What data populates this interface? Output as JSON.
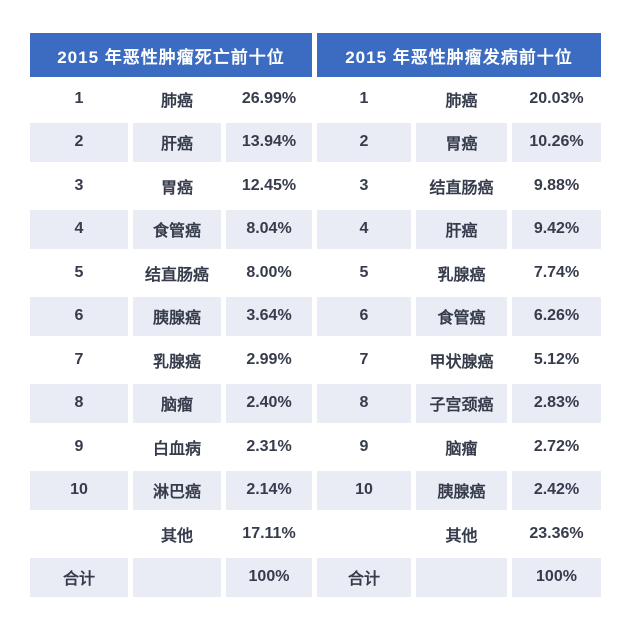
{
  "page": {
    "background": "#ffffff"
  },
  "colors": {
    "header_bg": "#3c6cc2",
    "header_text": "#ffffff",
    "row_shade_bg": "#e9ecf4",
    "cell_text": "#363c4c"
  },
  "tables": [
    {
      "key": "mortality",
      "title": "2015 年恶性肿瘤死亡前十位",
      "rows": [
        {
          "rank": "1",
          "name": "肺癌",
          "value": "26.99%"
        },
        {
          "rank": "2",
          "name": "肝癌",
          "value": "13.94%"
        },
        {
          "rank": "3",
          "name": "胃癌",
          "value": "12.45%"
        },
        {
          "rank": "4",
          "name": "食管癌",
          "value": "8.04%"
        },
        {
          "rank": "5",
          "name": "结直肠癌",
          "value": "8.00%"
        },
        {
          "rank": "6",
          "name": "胰腺癌",
          "value": "3.64%"
        },
        {
          "rank": "7",
          "name": "乳腺癌",
          "value": "2.99%"
        },
        {
          "rank": "8",
          "name": "脑瘤",
          "value": "2.40%"
        },
        {
          "rank": "9",
          "name": "白血病",
          "value": "2.31%"
        },
        {
          "rank": "10",
          "name": "淋巴癌",
          "value": "2.14%"
        },
        {
          "rank": "",
          "name": "其他",
          "value": "17.11%"
        },
        {
          "rank": "合计",
          "name": "",
          "value": "100%"
        }
      ]
    },
    {
      "key": "incidence",
      "title": "2015 年恶性肿瘤发病前十位",
      "rows": [
        {
          "rank": "1",
          "name": "肺癌",
          "value": "20.03%"
        },
        {
          "rank": "2",
          "name": "胃癌",
          "value": "10.26%"
        },
        {
          "rank": "3",
          "name": "结直肠癌",
          "value": "9.88%"
        },
        {
          "rank": "4",
          "name": "肝癌",
          "value": "9.42%"
        },
        {
          "rank": "5",
          "name": "乳腺癌",
          "value": "7.74%"
        },
        {
          "rank": "6",
          "name": "食管癌",
          "value": "6.26%"
        },
        {
          "rank": "7",
          "name": "甲状腺癌",
          "value": "5.12%"
        },
        {
          "rank": "8",
          "name": "子宫颈癌",
          "value": "2.83%"
        },
        {
          "rank": "9",
          "name": "脑瘤",
          "value": "2.72%"
        },
        {
          "rank": "10",
          "name": "胰腺癌",
          "value": "2.42%"
        },
        {
          "rank": "",
          "name": "其他",
          "value": "23.36%"
        },
        {
          "rank": "合计",
          "name": "",
          "value": "100%"
        }
      ]
    }
  ],
  "chart_data": [
    {
      "type": "table",
      "title": "2015 年恶性肿瘤死亡前十位",
      "rows": [
        [
          "1",
          "肺癌",
          "26.99%"
        ],
        [
          "2",
          "肝癌",
          "13.94%"
        ],
        [
          "3",
          "胃癌",
          "12.45%"
        ],
        [
          "4",
          "食管癌",
          "8.04%"
        ],
        [
          "5",
          "结直肠癌",
          "8.00%"
        ],
        [
          "6",
          "胰腺癌",
          "3.64%"
        ],
        [
          "7",
          "乳腺癌",
          "2.99%"
        ],
        [
          "8",
          "脑瘤",
          "2.40%"
        ],
        [
          "9",
          "白血病",
          "2.31%"
        ],
        [
          "10",
          "淋巴癌",
          "2.14%"
        ],
        [
          "",
          "其他",
          "17.11%"
        ],
        [
          "合计",
          "",
          "100%"
        ]
      ]
    },
    {
      "type": "table",
      "title": "2015 年恶性肿瘤发病前十位",
      "rows": [
        [
          "1",
          "肺癌",
          "20.03%"
        ],
        [
          "2",
          "胃癌",
          "10.26%"
        ],
        [
          "3",
          "结直肠癌",
          "9.88%"
        ],
        [
          "4",
          "肝癌",
          "9.42%"
        ],
        [
          "5",
          "乳腺癌",
          "7.74%"
        ],
        [
          "6",
          "食管癌",
          "6.26%"
        ],
        [
          "7",
          "甲状腺癌",
          "5.12%"
        ],
        [
          "8",
          "子宫颈癌",
          "2.83%"
        ],
        [
          "9",
          "脑瘤",
          "2.72%"
        ],
        [
          "10",
          "胰腺癌",
          "2.42%"
        ],
        [
          "",
          "其他",
          "23.36%"
        ],
        [
          "合计",
          "",
          "100%"
        ]
      ]
    }
  ]
}
